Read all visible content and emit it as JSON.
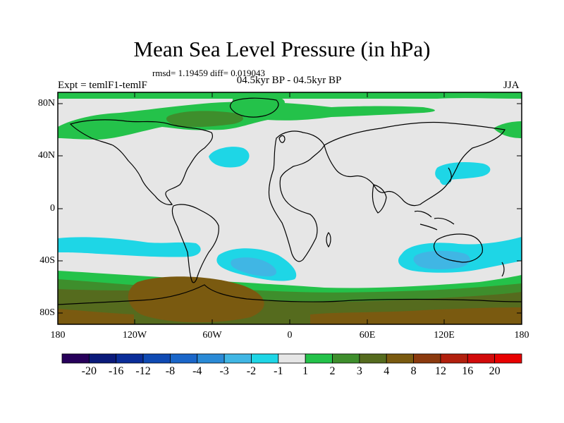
{
  "title": "Mean Sea Level Pressure (in hPa)",
  "stats": "rmsd= 1.19459 diff= 0.019043",
  "subtitle": "04.5kyr BP - 04.5kyr BP",
  "left_label": "Expt = temlF1-temlF",
  "right_label": "JJA",
  "chart_data": {
    "type": "heatmap",
    "projection": "cylindrical-equidistant",
    "title": "Mean Sea Level Pressure (in hPa)",
    "lat_ticks": [
      "80N",
      "40N",
      "0",
      "40S",
      "80S"
    ],
    "lon_ticks": [
      "180",
      "120W",
      "60W",
      "0",
      "60E",
      "120E",
      "180"
    ],
    "colorbar": {
      "levels": [
        "-20",
        "-16",
        "-12",
        "-8",
        "-4",
        "-3",
        "-2",
        "-1",
        "1",
        "2",
        "3",
        "4",
        "8",
        "12",
        "16",
        "20"
      ],
      "colors": [
        "#27005a",
        "#0a1a7a",
        "#0a2d99",
        "#0f4ab3",
        "#1a66c9",
        "#2a8ad6",
        "#40b6e4",
        "#1ed6e6",
        "#e6e6e6",
        "#24c24a",
        "#3e8e2c",
        "#556b1e",
        "#7a5a10",
        "#8b3a0e",
        "#b2200e",
        "#d20a0a",
        "#e80000"
      ]
    }
  }
}
